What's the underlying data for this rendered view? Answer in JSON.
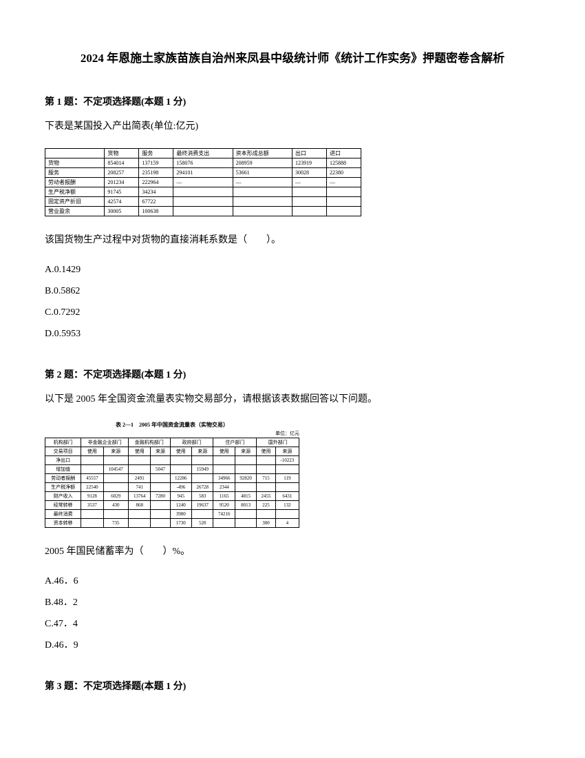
{
  "title": "2024 年恩施土家族苗族自治州来凤县中级统计师《统计工作实务》押题密卷含解析",
  "q1": {
    "header": "第 1 题：不定项选择题(本题 1 分)",
    "text": "下表是某国投入产出简表(单位:亿元)",
    "postText": "该国货物生产过程中对货物的直接消耗系数是（　　）。",
    "options": {
      "a": "A.0.1429",
      "b": "B.0.5862",
      "c": "C.0.7292",
      "d": "D.0.5953"
    },
    "table": {
      "headers": [
        "",
        "货物",
        "服务",
        "最终消费支出",
        "资本形成总额",
        "出口",
        "进口"
      ],
      "rows": [
        [
          "货物",
          "854014",
          "137159",
          "158076",
          "208959",
          "123919",
          "125888"
        ],
        [
          "服务",
          "208257",
          "235198",
          "294101",
          "53661",
          "30028",
          "22380"
        ],
        [
          "劳动者报酬",
          "201234",
          "222964",
          "—",
          "—",
          "—",
          "—"
        ],
        [
          "生产税净额",
          "91745",
          "34234",
          "",
          "",
          "",
          ""
        ],
        [
          "固定资产折旧",
          "42574",
          "67722",
          "",
          "",
          "",
          ""
        ],
        [
          "营业盈余",
          "30005",
          "100638",
          "",
          "",
          "",
          ""
        ]
      ]
    }
  },
  "q2": {
    "header": "第 2 题：不定项选择题(本题 1 分)",
    "text": "以下是 2005 年全国资金流量表实物交易部分，请根据该表数据回答以下问题。",
    "postText": "2005 年国民储蓄率为（　　）%。",
    "options": {
      "a": "A.46．6",
      "b": "B.48．2",
      "c": "C.47．4",
      "d": "D.46．9"
    },
    "table": {
      "title": "表 2—1　2005 年中国资金流量表（实物交易）",
      "unit": "单位：亿元",
      "headerRow1": [
        "机构部门",
        "非金融企业部门",
        "金融机构部门",
        "政府部门",
        "住户部门",
        "",
        "国外部门"
      ],
      "headerRow2": [
        "交易项目",
        "使用",
        "来源",
        "使用",
        "来源",
        "使用",
        "来源",
        "使用",
        "来源",
        "使用",
        "来源"
      ],
      "rows": [
        [
          "净出口",
          "",
          "",
          "",
          "",
          "",
          "",
          "",
          "",
          "",
          "-10223"
        ],
        [
          "增加值",
          "",
          "104547",
          "",
          "5047",
          "",
          "15949",
          "",
          "",
          "",
          ""
        ],
        [
          "劳动者报酬",
          "45557",
          "",
          "2491",
          "",
          "12286",
          "",
          "34966",
          "92820",
          "715",
          "119"
        ],
        [
          "生产税净额",
          "22540",
          "",
          "741",
          "",
          "-496",
          "26728",
          "2344",
          "",
          "",
          ""
        ],
        [
          "财产收入",
          "9128",
          "6029",
          "13764",
          "7280",
          "945",
          "583",
          "1165",
          "4815",
          "2455",
          "6431"
        ],
        [
          "经常转移",
          "3537",
          "430",
          "868",
          "",
          "1240",
          "19637",
          "9520",
          "8013",
          "225",
          "132"
        ],
        [
          "最终消费",
          "",
          "",
          "",
          "",
          "3980",
          "",
          "74216",
          "",
          "",
          ""
        ],
        [
          "资本转移",
          "",
          "735",
          "",
          "",
          "1730",
          "520",
          "",
          "",
          "300",
          "4"
        ]
      ]
    }
  },
  "q3": {
    "header": "第 3 题：不定项选择题(本题 1 分)"
  }
}
